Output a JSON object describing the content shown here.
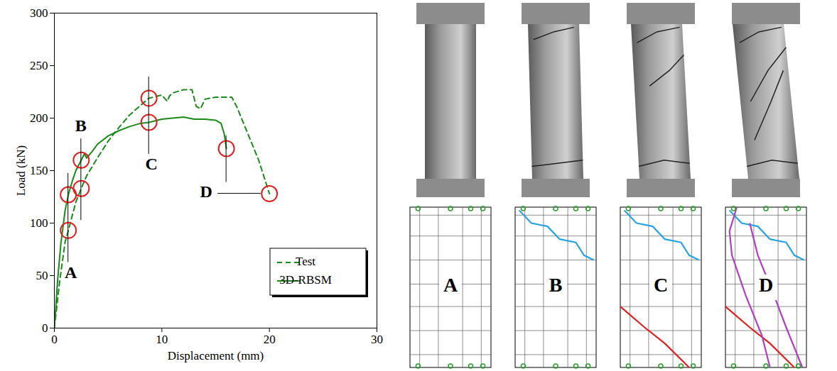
{
  "chart_data": {
    "type": "line",
    "xlabel": "Displacement (mm)",
    "ylabel": "Load (kN)",
    "xlim": [
      0,
      30
    ],
    "xticks": [
      0,
      10,
      20,
      30
    ],
    "ylim": [
      0,
      300
    ],
    "yticks": [
      0,
      50,
      100,
      150,
      200,
      250,
      300
    ],
    "legend": "lower right",
    "series": [
      {
        "name": "Test",
        "color": "#1a8a1a",
        "line_style": "dashed",
        "x": [
          0,
          0.5,
          1.0,
          1.3,
          2.0,
          2.5,
          3.0,
          4.0,
          5.0,
          6.0,
          7.0,
          8.0,
          8.8,
          10.0,
          10.5,
          10.7,
          11.0,
          12.0,
          12.8,
          13.2,
          13.6,
          14.0,
          15.0,
          16.5,
          17.0,
          18.0,
          19.0,
          20.0
        ],
        "values": [
          0,
          45,
          82,
          93,
          120,
          133,
          145,
          162,
          178,
          191,
          203,
          212,
          219,
          222,
          216,
          221,
          224,
          227,
          227,
          211,
          209,
          218,
          220,
          220,
          210,
          185,
          160,
          128
        ]
      },
      {
        "name": "3D-RBSM",
        "color": "#1a8a1a",
        "line_style": "solid",
        "x": [
          0,
          0.3,
          0.6,
          1.0,
          1.3,
          1.7,
          2.0,
          2.5,
          2.8,
          3.0,
          3.5,
          4.0,
          5.0,
          6.0,
          7.0,
          8.0,
          8.8,
          10.0,
          11.0,
          12.0,
          13.0,
          14.0,
          15.0,
          15.5,
          15.8,
          16.0
        ],
        "values": [
          0,
          45,
          80,
          112,
          127,
          141,
          150,
          160,
          166,
          162,
          168,
          175,
          183,
          188,
          192,
          195,
          196,
          199,
          200,
          201,
          199,
          199,
          198,
          195,
          185,
          171
        ]
      }
    ],
    "annotations": [
      {
        "label": "A",
        "side": "below",
        "points": [
          [
            1.3,
            127
          ],
          [
            1.3,
            93
          ]
        ]
      },
      {
        "label": "B",
        "side": "above",
        "points": [
          [
            2.5,
            160
          ],
          [
            2.5,
            133
          ]
        ]
      },
      {
        "label": "C",
        "side": "below",
        "points": [
          [
            8.8,
            219
          ],
          [
            8.8,
            196
          ]
        ]
      },
      {
        "label": "D",
        "side": "left",
        "points": [
          [
            16.0,
            171
          ],
          [
            20.0,
            128
          ]
        ]
      }
    ],
    "marker": "circle",
    "marker_color": "#e02020"
  },
  "crack_diagrams": {
    "labels": [
      "A",
      "B",
      "C",
      "D"
    ]
  }
}
